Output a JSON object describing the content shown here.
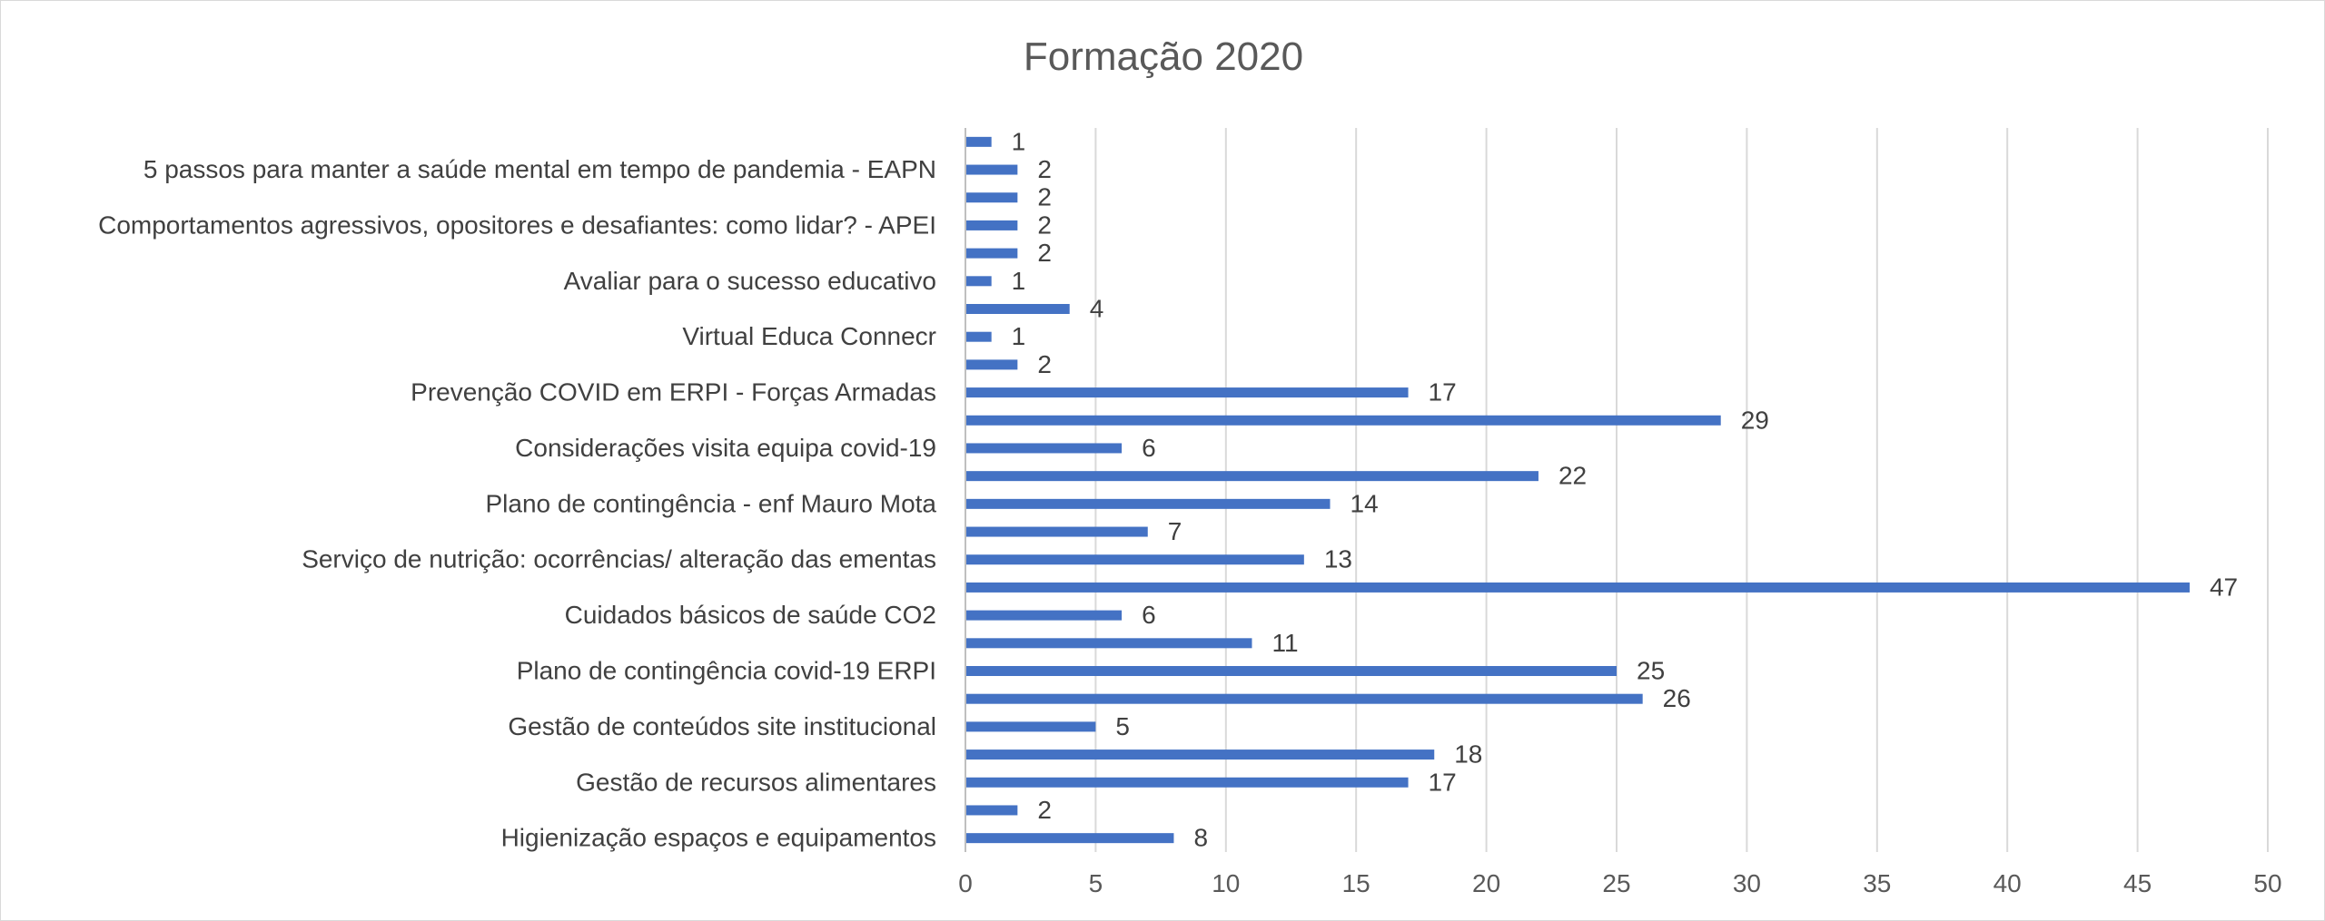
{
  "chart_data": {
    "type": "bar",
    "orientation": "horizontal",
    "title": "Formação 2020",
    "categories": [
      "",
      "5 passos para manter a saúde mental em tempo de pandemia - EAPN",
      "",
      "Comportamentos agressivos, opositores e desafiantes: como lidar? - APEI",
      "",
      "Avaliar para o sucesso educativo",
      "",
      "Virtual Educa Connecr",
      "",
      "Prevenção COVID em ERPI - Forças Armadas",
      "",
      "Considerações visita equipa covid-19",
      "",
      "Plano de contingência - enf Mauro Mota",
      "",
      "Serviço de nutrição: ocorrências/ alteração das ementas",
      "",
      "Cuidados básicos de saúde CO2",
      "",
      "Plano de contingência covid-19 ERPI",
      "",
      "Gestão de conteúdos site institucional",
      "",
      "Gestão de recursos alimentares",
      "",
      "Higienização espaços e equipamentos"
    ],
    "values": [
      1,
      2,
      2,
      2,
      2,
      1,
      4,
      1,
      2,
      17,
      29,
      6,
      22,
      14,
      7,
      13,
      47,
      6,
      11,
      25,
      26,
      5,
      18,
      17,
      2,
      8
    ],
    "xlim": [
      0,
      50
    ],
    "x_ticks": [
      0,
      5,
      10,
      15,
      20,
      25,
      30,
      35,
      40,
      45,
      50
    ],
    "grid": "vertical",
    "data_labels": true,
    "bar_color": "#4472c4",
    "legend": "none"
  }
}
